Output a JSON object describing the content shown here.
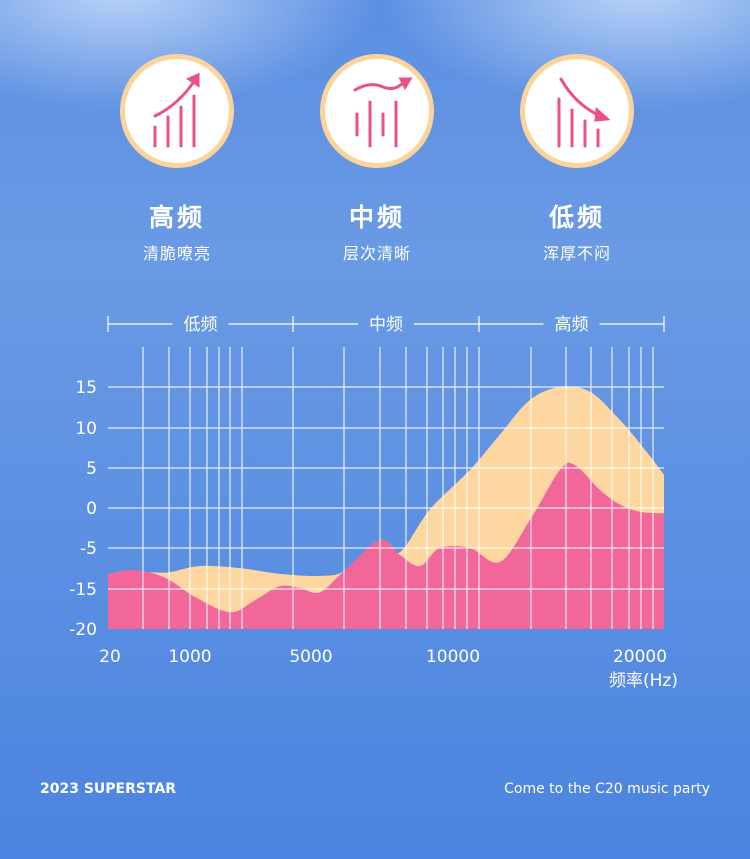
{
  "features": [
    {
      "title": "高频",
      "subtitle": "清脆嘹亮",
      "icon": "rising-bars-icon"
    },
    {
      "title": "中频",
      "subtitle": "层次清晰",
      "icon": "wave-bars-icon"
    },
    {
      "title": "低频",
      "subtitle": "浑厚不闷",
      "icon": "falling-bars-icon"
    }
  ],
  "colors": {
    "pink": "#f2679a",
    "cream": "#fdd6a0",
    "ring": "#fdd39c",
    "grid": "#ffffff"
  },
  "chart_data": {
    "type": "area",
    "bands": [
      "低频",
      "中频",
      "高频"
    ],
    "x_ticks": [
      "20",
      "1000",
      "5000",
      "10000",
      "20000"
    ],
    "xlabel": "频率(Hz)",
    "y_ticks": [
      "15",
      "10",
      "5",
      "0",
      "-5",
      "-15",
      "-20"
    ],
    "ylim": [
      -20,
      15
    ],
    "grid": true,
    "series": [
      {
        "name": "cream",
        "color": "#fdd6a0",
        "x": [
          510,
          755,
          1331,
          2653,
          3975,
          5317,
          6197,
          7430,
          8134,
          9190,
          10909,
          12513,
          14118,
          15722,
          17326,
          18930,
          20267,
          21283
        ],
        "y": [
          -10.9,
          -10.9,
          -9.4,
          -9.9,
          -11.3,
          -11.8,
          -10.6,
          -4.6,
          -6,
          -0.2,
          4.7,
          9.1,
          13.4,
          15.7,
          14.4,
          10.9,
          7.2,
          4.1
        ]
      },
      {
        "name": "pink",
        "color": "#f2679a",
        "x": [
          20,
          265,
          510,
          755,
          1165,
          2322,
          3149,
          3975,
          4636,
          5317,
          6197,
          7430,
          8134,
          8838,
          9542,
          10909,
          12513,
          14118,
          15722,
          16524,
          17861,
          18930,
          20000,
          21283
        ],
        "y": [
          -11.3,
          -10.4,
          -10.9,
          -12.8,
          -16,
          -17.9,
          -16.4,
          -14.3,
          -14.8,
          -15.4,
          -10.4,
          -4,
          -6.7,
          -9.4,
          -5,
          -5,
          -8.4,
          -1.5,
          4.7,
          5.3,
          2.2,
          0.4,
          -0.5,
          -0.7
        ]
      }
    ]
  },
  "footer": {
    "left": "2023 SUPERSTAR",
    "right": "Come to the C20 music party"
  }
}
